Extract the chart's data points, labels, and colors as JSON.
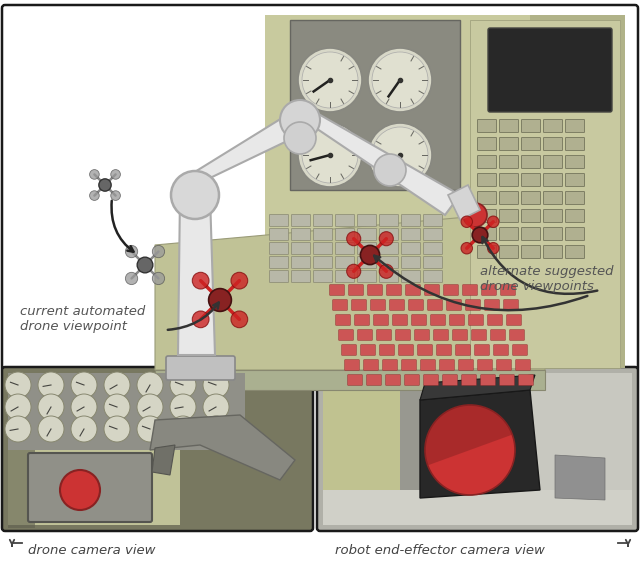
{
  "background_color": "#ffffff",
  "label_drone_camera": "drone camera view",
  "label_robot_camera": "robot end-effector camera view",
  "label_current": "current automated\ndrone viewpoint",
  "label_alternate": "alternate suggested\ndrone viewpoints",
  "label_color": "#555555",
  "label_fontsize": 9.5,
  "border_color": "#1a1a1a",
  "arrow_color": "#333333",
  "panel_green": "#c8ca9e",
  "panel_green_dark": "#9a9b78",
  "panel_green_side": "#b0b288",
  "gauge_bg": "#9a9b88",
  "gauge_face": "#d8d8c8",
  "arm_color": "#e8e8e8",
  "arm_edge": "#aaaaaa",
  "drone_red": "#cc2222",
  "drone_dark": "#882222",
  "fig_width": 6.4,
  "fig_height": 5.65,
  "dpi": 100
}
